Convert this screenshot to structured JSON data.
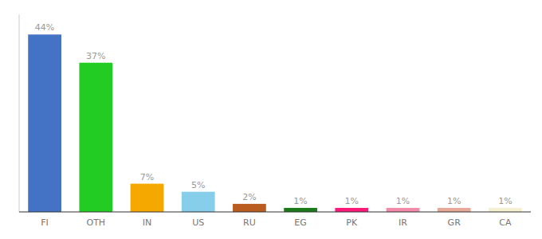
{
  "chart_data": {
    "type": "bar",
    "categories": [
      "FI",
      "OTH",
      "IN",
      "US",
      "RU",
      "EG",
      "PK",
      "IR",
      "GR",
      "CA"
    ],
    "values": [
      44,
      37,
      7,
      5,
      2,
      1,
      1,
      1,
      1,
      1
    ],
    "value_labels": [
      "44%",
      "37%",
      "7%",
      "5%",
      "2%",
      "1%",
      "1%",
      "1%",
      "1%",
      "1%"
    ],
    "colors": [
      "#4472c4",
      "#22cc22",
      "#f5a800",
      "#87ceeb",
      "#b85c20",
      "#1a7a1a",
      "#ff1a7a",
      "#f48aaa",
      "#e8a898",
      "#f5f0d0"
    ],
    "ylim": [
      0,
      49
    ],
    "grid": false,
    "data_labels": true,
    "tick_labels": "x"
  }
}
